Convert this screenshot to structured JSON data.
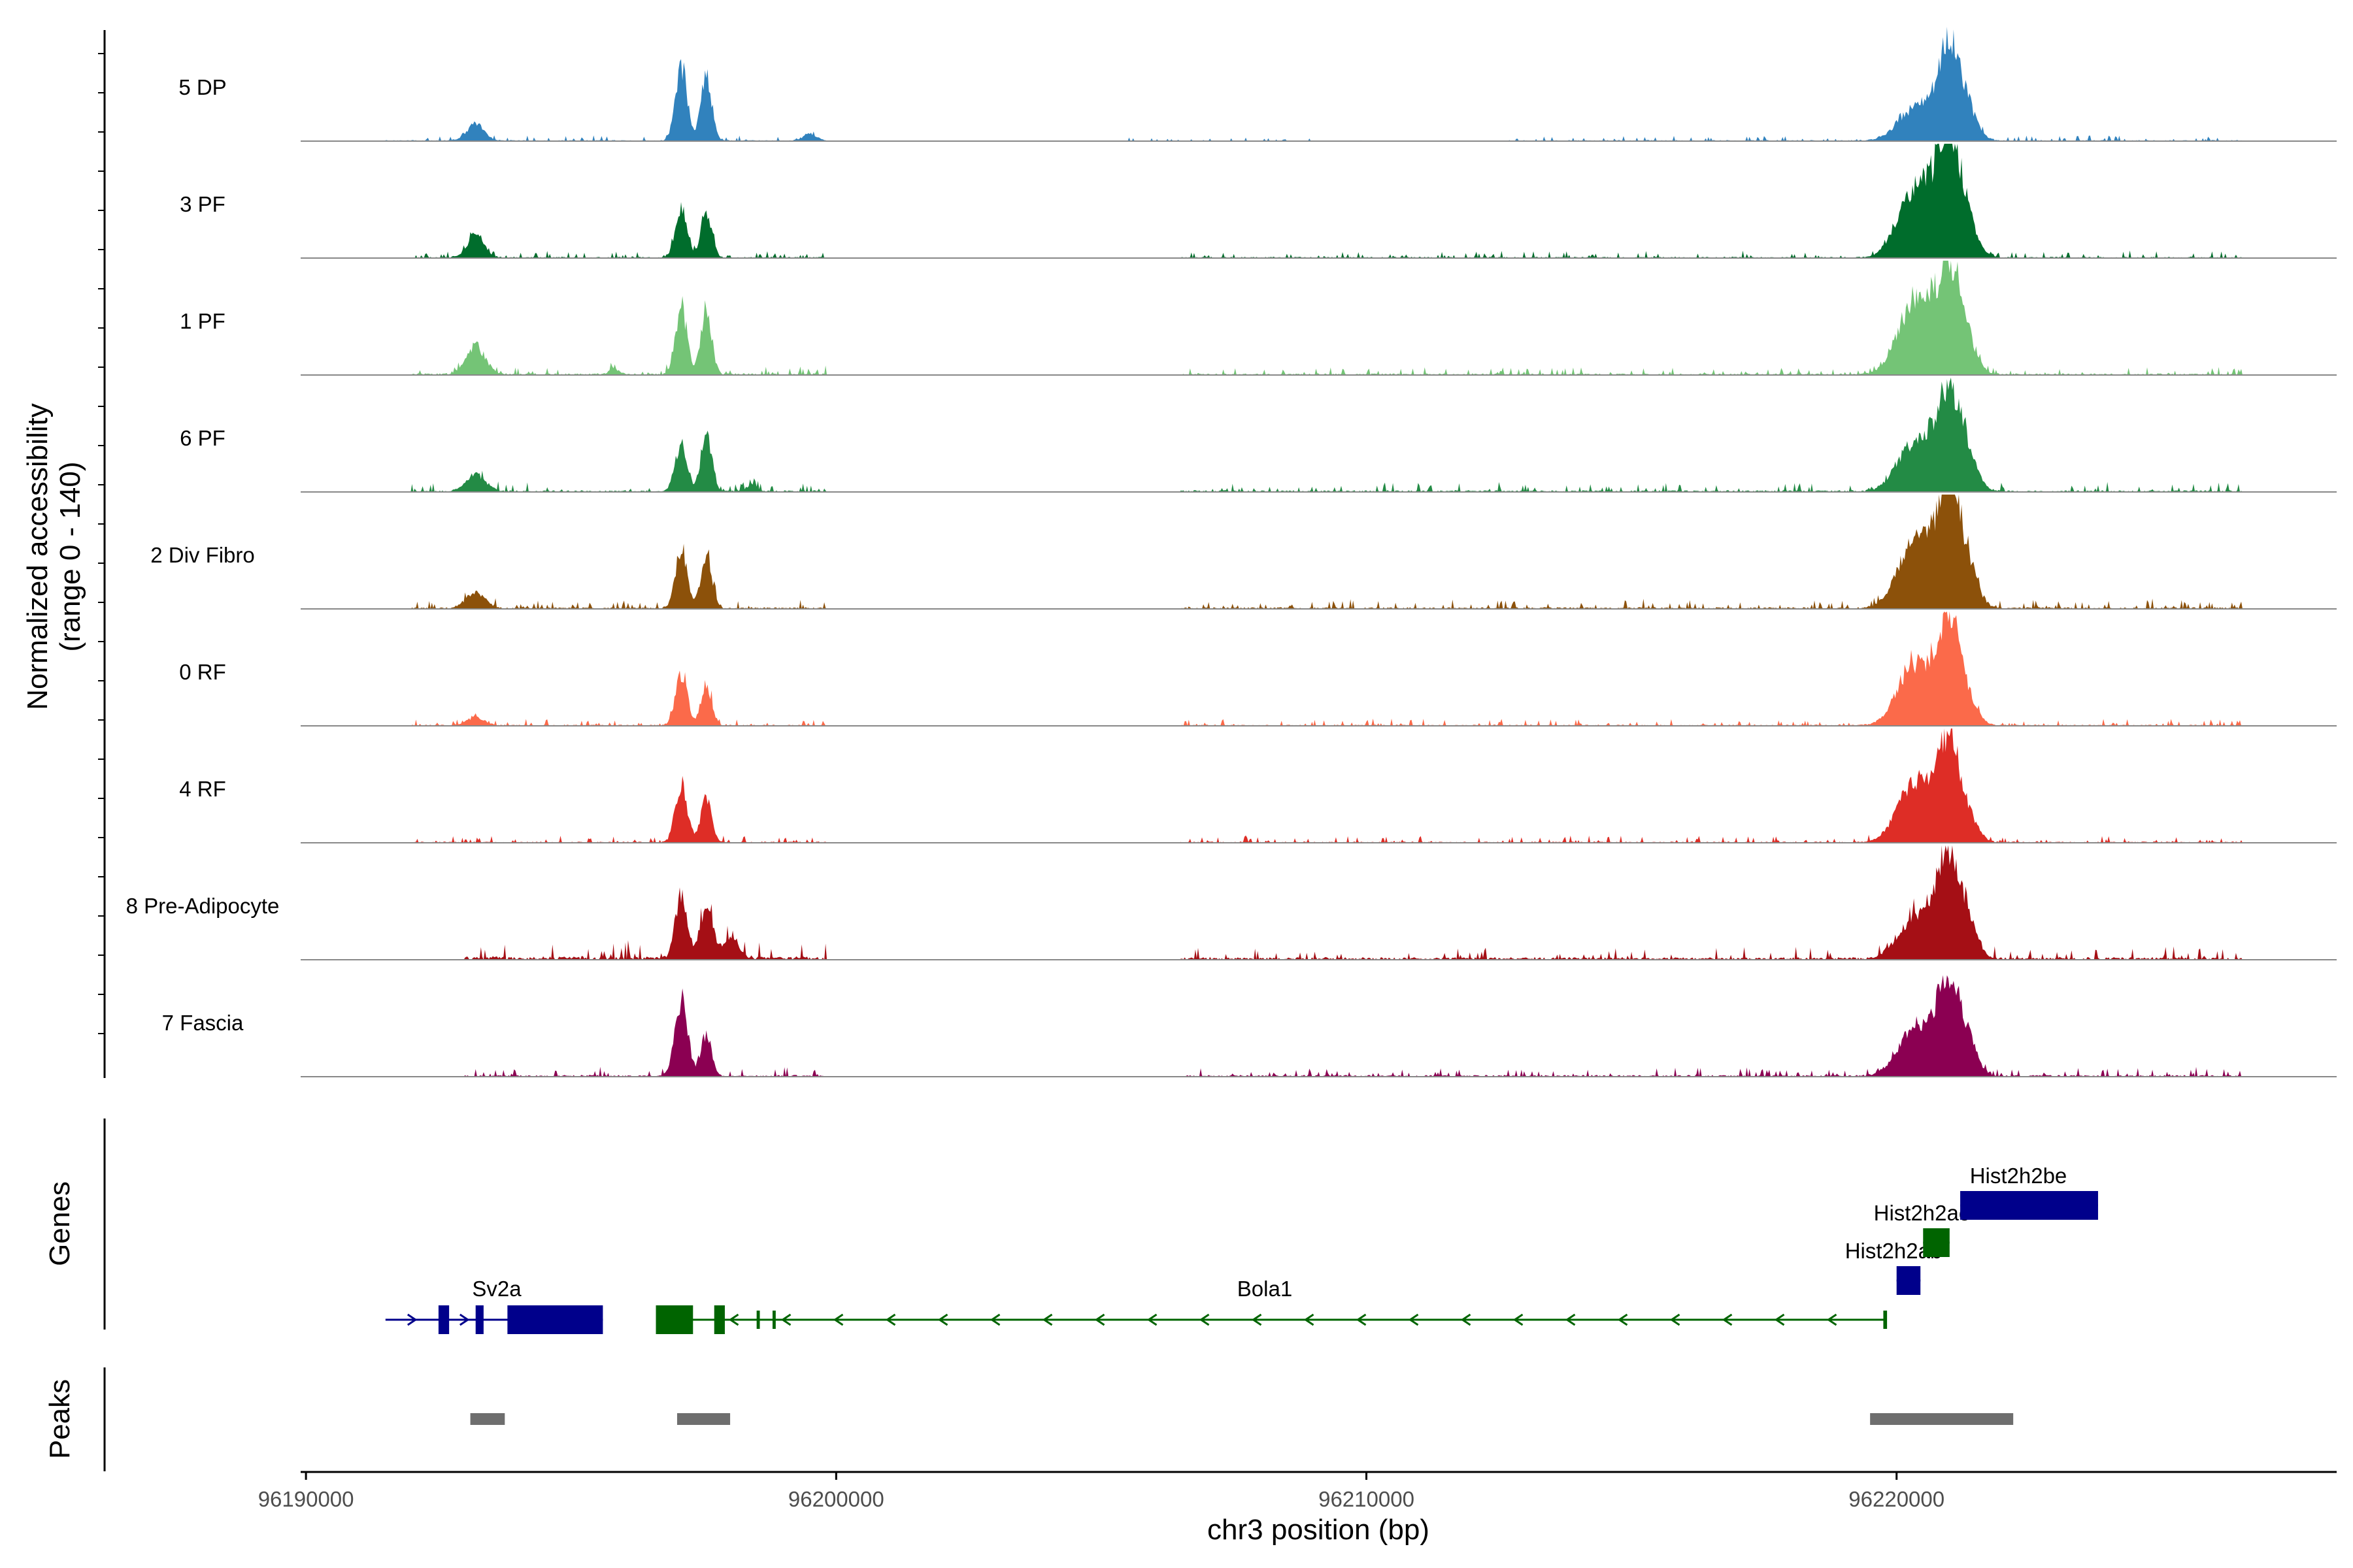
{
  "chart_data": {
    "type": "area",
    "title": "",
    "ylabel_line1": "Normalized accessibility",
    "ylabel_line2": "(range 0 - 140)",
    "ylim": [
      0,
      140
    ],
    "xlabel": "chr3 position (bp)",
    "xlim": [
      96189900,
      96228300
    ],
    "x_ticks": [
      96190000,
      96200000,
      96210000,
      96220000
    ],
    "x_tick_labels": [
      "96190000",
      "96200000",
      "96210000",
      "96220000"
    ],
    "genes_label": "Genes",
    "peaks_label": "Peaks",
    "tracks": [
      {
        "name": "5 DP",
        "color": "#3182bd",
        "peaks": [
          [
            96193200,
            24,
            160
          ],
          [
            96197080,
            105,
            110
          ],
          [
            96197550,
            96,
            100
          ],
          [
            96199500,
            10,
            120
          ],
          [
            96220300,
            42,
            300
          ],
          [
            96220800,
            37,
            250
          ],
          [
            96221000,
            105,
            180
          ],
          [
            96221300,
            48,
            200
          ]
        ],
        "noise": [
          [
            96191500,
            96199800,
            2.5
          ],
          [
            96205500,
            96210200,
            1.5
          ],
          [
            96212500,
            96226500,
            2.5
          ]
        ]
      },
      {
        "name": "3 PF",
        "color": "#006d2c",
        "peaks": [
          [
            96193200,
            30,
            160
          ],
          [
            96197080,
            70,
            110
          ],
          [
            96197550,
            68,
            100
          ],
          [
            96220300,
            90,
            300
          ],
          [
            96220800,
            75,
            250
          ],
          [
            96221000,
            120,
            180
          ],
          [
            96221300,
            55,
            200
          ]
        ],
        "noise": [
          [
            96192000,
            96199800,
            3
          ],
          [
            96206500,
            96226500,
            3
          ]
        ]
      },
      {
        "name": "1 PF",
        "color": "#74c476",
        "peaks": [
          [
            96193200,
            40,
            180
          ],
          [
            96197080,
            90,
            110
          ],
          [
            96197550,
            95,
            100
          ],
          [
            96195800,
            10,
            80
          ],
          [
            96220300,
            95,
            300
          ],
          [
            96220800,
            60,
            250
          ],
          [
            96221000,
            100,
            180
          ],
          [
            96221300,
            50,
            200
          ]
        ],
        "noise": [
          [
            96192000,
            96199800,
            4
          ],
          [
            96206500,
            96226500,
            3.5
          ]
        ]
      },
      {
        "name": "6 PF",
        "color": "#238b45",
        "peaks": [
          [
            96193200,
            25,
            180
          ],
          [
            96197080,
            70,
            110
          ],
          [
            96197550,
            85,
            100
          ],
          [
            96198400,
            10,
            80
          ],
          [
            96220300,
            65,
            300
          ],
          [
            96220800,
            60,
            250
          ],
          [
            96221000,
            85,
            180
          ],
          [
            96221300,
            55,
            200
          ]
        ],
        "noise": [
          [
            96192000,
            96199800,
            4
          ],
          [
            96206500,
            96226500,
            4
          ]
        ]
      },
      {
        "name": "2 Div Fibro",
        "color": "#8c510a",
        "peaks": [
          [
            96193200,
            22,
            180
          ],
          [
            96197080,
            85,
            110
          ],
          [
            96197550,
            82,
            100
          ],
          [
            96220300,
            85,
            300
          ],
          [
            96220800,
            70,
            250
          ],
          [
            96221000,
            98,
            180
          ],
          [
            96221300,
            70,
            200
          ]
        ],
        "noise": [
          [
            96192000,
            96199800,
            4
          ],
          [
            96206500,
            96226500,
            4
          ]
        ]
      },
      {
        "name": "0 RF",
        "color": "#fb6a4a",
        "peaks": [
          [
            96193200,
            12,
            160
          ],
          [
            96197080,
            75,
            110
          ],
          [
            96197550,
            58,
            100
          ],
          [
            96220300,
            80,
            300
          ],
          [
            96220800,
            55,
            250
          ],
          [
            96221000,
            105,
            180
          ],
          [
            96221300,
            40,
            200
          ]
        ],
        "noise": [
          [
            96192000,
            96199800,
            3
          ],
          [
            96206500,
            96226500,
            3
          ]
        ]
      },
      {
        "name": "4 RF",
        "color": "#de2d26",
        "peaks": [
          [
            96197080,
            85,
            110
          ],
          [
            96197550,
            65,
            100
          ],
          [
            96220300,
            78,
            300
          ],
          [
            96220800,
            55,
            250
          ],
          [
            96221000,
            98,
            180
          ],
          [
            96221300,
            40,
            200
          ]
        ],
        "noise": [
          [
            96192000,
            96199800,
            3
          ],
          [
            96206500,
            96226500,
            3
          ]
        ]
      },
      {
        "name": "8 Pre-Adipocyte",
        "color": "#a50f15",
        "peaks": [
          [
            96197080,
            95,
            110
          ],
          [
            96197550,
            70,
            120
          ],
          [
            96198000,
            30,
            150
          ],
          [
            96220300,
            50,
            300
          ],
          [
            96220800,
            60,
            250
          ],
          [
            96221000,
            100,
            180
          ],
          [
            96221300,
            55,
            200
          ]
        ],
        "noise": [
          [
            96193000,
            96199800,
            8
          ],
          [
            96206500,
            96226500,
            6
          ]
        ]
      },
      {
        "name": "7 Fascia",
        "color": "#8b0052",
        "peaks": [
          [
            96197080,
            110,
            120
          ],
          [
            96197550,
            60,
            100
          ],
          [
            96220300,
            60,
            300
          ],
          [
            96220800,
            60,
            250
          ],
          [
            96221000,
            75,
            180
          ],
          [
            96221300,
            55,
            200
          ]
        ],
        "noise": [
          [
            96193000,
            96199800,
            4
          ],
          [
            96206500,
            96226500,
            4
          ]
        ]
      }
    ],
    "genes": [
      {
        "name": "Sv2a",
        "strand": "+",
        "color": "#00008b",
        "start": 96191500,
        "end": 96195600,
        "exons": [
          [
            96192500,
            96192700,
            "cds"
          ],
          [
            96193200,
            96193350,
            "cds"
          ],
          [
            96193800,
            96195600,
            "cds"
          ]
        ]
      },
      {
        "name": "Bola1",
        "strand": "-",
        "color": "#006400",
        "start": 96196600,
        "end": 96219800,
        "exons": [
          [
            96196600,
            96197300,
            "cds"
          ],
          [
            96197700,
            96197900,
            "cds"
          ],
          [
            96198500,
            96198560,
            "utr"
          ],
          [
            96198800,
            96198860,
            "utr"
          ],
          [
            96219750,
            96219820,
            "utr"
          ]
        ]
      },
      {
        "name": "Hist2h2ab",
        "strand": "+",
        "color": "#00008b",
        "start": 96220000,
        "end": 96220450,
        "exons": [
          [
            96220000,
            96220450,
            "cds"
          ]
        ]
      },
      {
        "name": "Hist2h2ac",
        "strand": "-",
        "color": "#006400",
        "start": 96220500,
        "end": 96221000,
        "exons": [
          [
            96220500,
            96221000,
            "cds"
          ]
        ]
      },
      {
        "name": "Hist2h2be",
        "strand": "-",
        "color": "#00008b",
        "start": 96221200,
        "end": 96223800,
        "exons": [
          [
            96221200,
            96223800,
            "cds"
          ]
        ]
      }
    ],
    "peaks": [
      {
        "start": 96193100,
        "end": 96193750
      },
      {
        "start": 96197000,
        "end": 96198000
      },
      {
        "start": 96219500,
        "end": 96222200
      }
    ]
  }
}
